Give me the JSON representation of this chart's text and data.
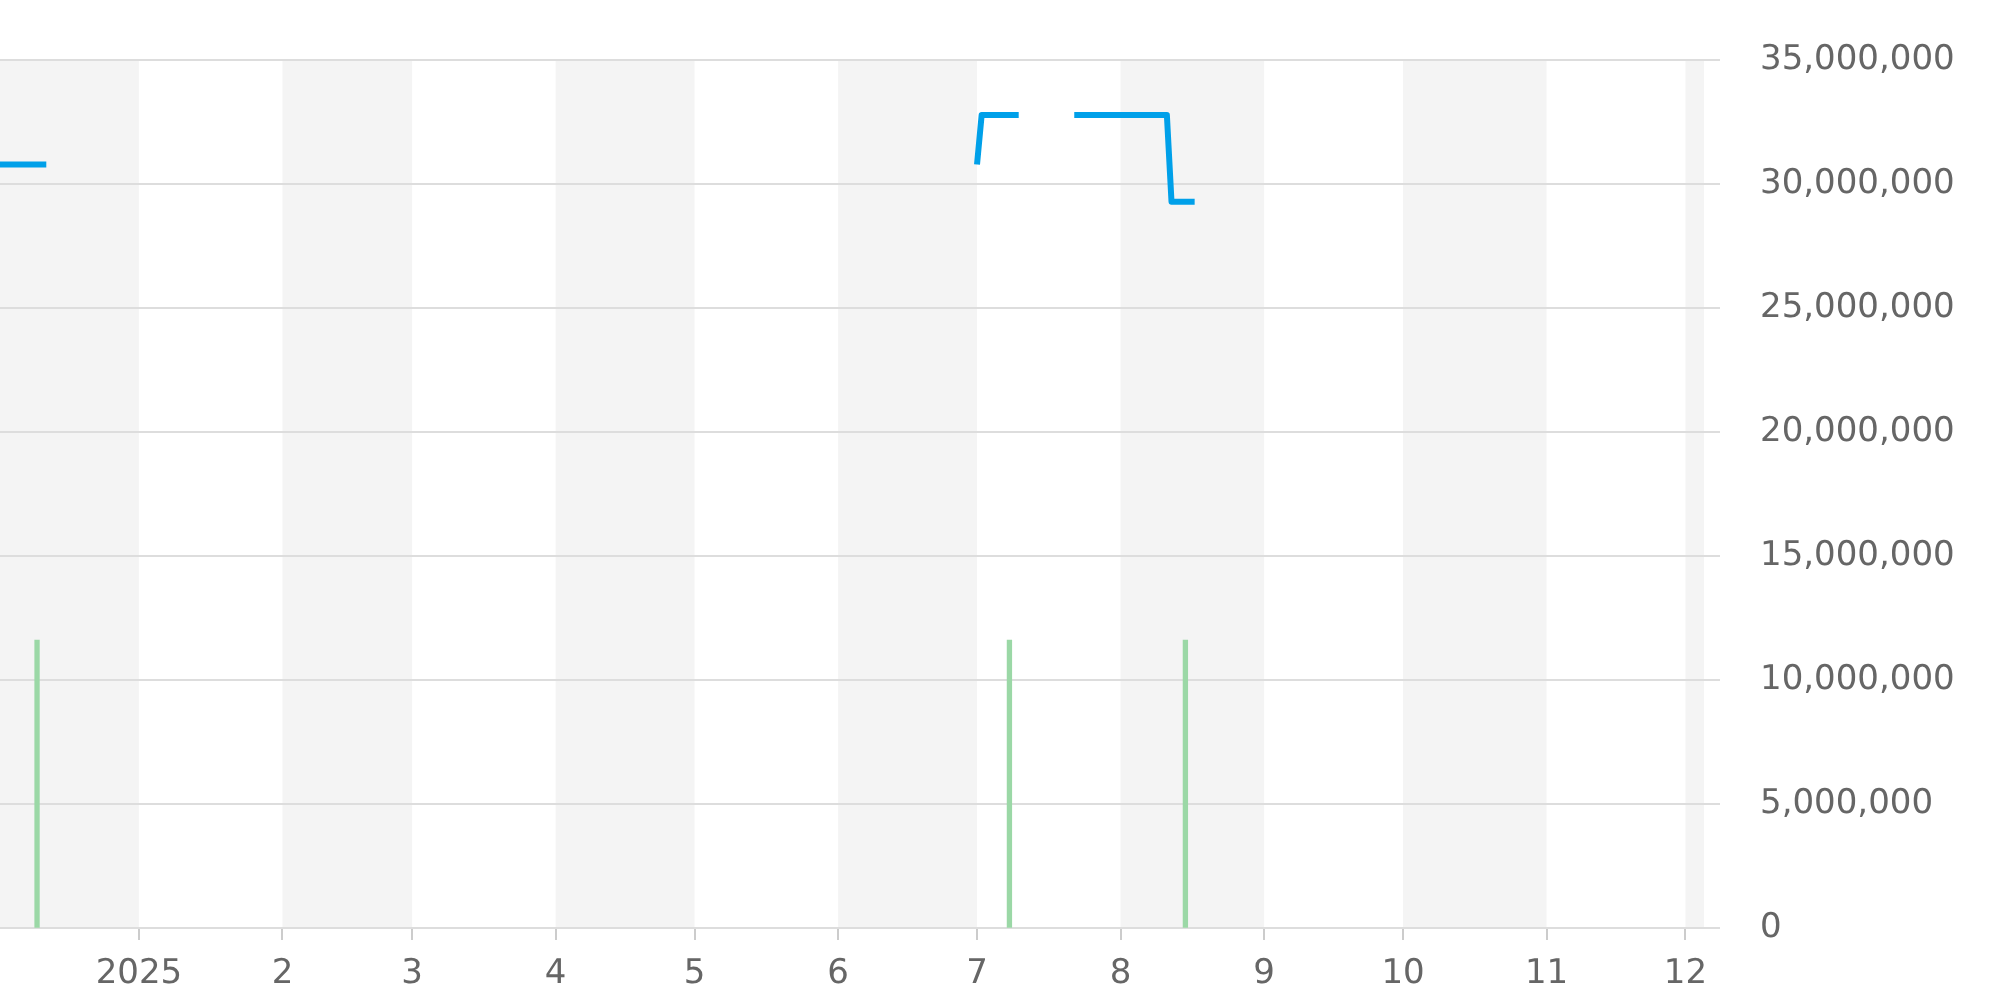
{
  "chart_data": {
    "type": "line",
    "xlim": [
      "2024-12-02",
      "2025-12-05"
    ],
    "xticks": [
      {
        "value": "2025-01-01",
        "label": "2025"
      },
      {
        "value": "2025-02-01",
        "label": "2"
      },
      {
        "value": "2025-03-01",
        "label": "3"
      },
      {
        "value": "2025-04-01",
        "label": "4"
      },
      {
        "value": "2025-05-01",
        "label": "5"
      },
      {
        "value": "2025-06-01",
        "label": "6"
      },
      {
        "value": "2025-07-01",
        "label": "7"
      },
      {
        "value": "2025-08-01",
        "label": "8"
      },
      {
        "value": "2025-09-01",
        "label": "9"
      },
      {
        "value": "2025-10-01",
        "label": "10"
      },
      {
        "value": "2025-11-01",
        "label": "11"
      },
      {
        "value": "2025-12-01",
        "label": "12"
      }
    ],
    "ylim": [
      0,
      35000000
    ],
    "yticks": [
      {
        "value": 0,
        "label": "0"
      },
      {
        "value": 5000000,
        "label": "5,000,000"
      },
      {
        "value": 10000000,
        "label": "10,000,000"
      },
      {
        "value": 15000000,
        "label": "15,000,000"
      },
      {
        "value": 20000000,
        "label": "20,000,000"
      },
      {
        "value": 25000000,
        "label": "25,000,000"
      },
      {
        "value": 30000000,
        "label": "30,000,000"
      },
      {
        "value": 35000000,
        "label": "35,000,000"
      }
    ],
    "grid": "y",
    "marker": "none",
    "series": [
      {
        "type": "bar",
        "color": "#9bd8a6",
        "x": [
          "2024-12-10",
          "2025-07-08",
          "2025-08-15"
        ],
        "values": [
          11600000,
          11600000,
          11600000
        ]
      },
      {
        "color": "#00a0e9",
        "x": [
          "2024-12-02",
          "2024-12-12",
          "2025-03-01",
          "2025-07-01",
          "2025-07-02",
          "2025-07-10",
          "2025-07-16",
          "2025-07-22",
          "2025-08-11",
          "2025-08-12",
          "2025-08-17"
        ],
        "values": [
          30800000,
          30800000,
          null,
          30800000,
          32800000,
          32800000,
          null,
          32800000,
          32800000,
          29300000,
          29300000
        ]
      }
    ],
    "bands": [
      {
        "axis": "x",
        "from": "2024-12-02",
        "to": "2025-01-01",
        "color": "#f4f4f4"
      },
      {
        "axis": "x",
        "from": "2025-02-01",
        "to": "2025-03-01",
        "color": "#f4f4f4"
      },
      {
        "axis": "x",
        "from": "2025-04-01",
        "to": "2025-05-01",
        "color": "#f4f4f4"
      },
      {
        "axis": "x",
        "from": "2025-06-01",
        "to": "2025-07-01",
        "color": "#f4f4f4"
      },
      {
        "axis": "x",
        "from": "2025-08-01",
        "to": "2025-09-01",
        "color": "#f4f4f4"
      },
      {
        "axis": "x",
        "from": "2025-10-01",
        "to": "2025-11-01",
        "color": "#f4f4f4"
      },
      {
        "axis": "x",
        "from": "2025-12-01",
        "to": "2025-12-05",
        "color": "#f4f4f4"
      }
    ]
  }
}
